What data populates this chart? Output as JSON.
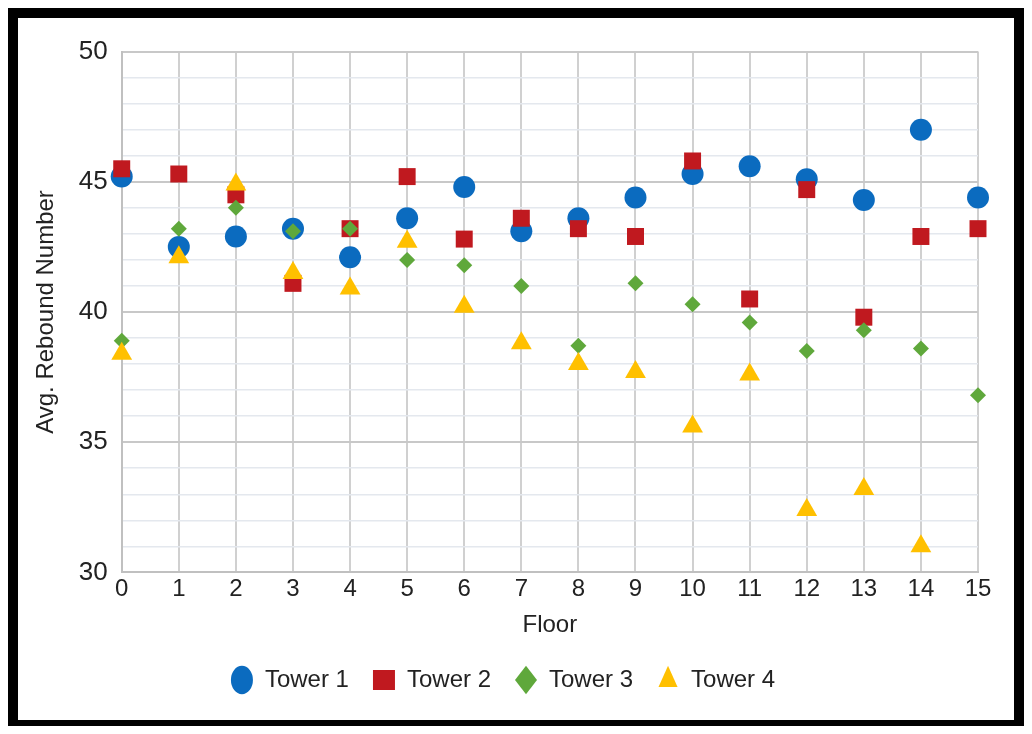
{
  "chart_data": {
    "type": "scatter",
    "xlabel": "Floor",
    "ylabel": "Avg. Rebound Number",
    "x": [
      0,
      1,
      2,
      3,
      4,
      5,
      6,
      7,
      8,
      9,
      10,
      11,
      12,
      13,
      14,
      15
    ],
    "xlim": [
      0,
      15
    ],
    "xticks": [
      0,
      1,
      2,
      3,
      4,
      5,
      6,
      7,
      8,
      9,
      10,
      11,
      12,
      13,
      14,
      15
    ],
    "ylim": [
      30,
      50
    ],
    "yticks": [
      30,
      {
        "value": 31,
        "label": null
      },
      {
        "value": 32,
        "label": null
      },
      {
        "value": 33,
        "label": null
      },
      {
        "value": 34,
        "label": null
      },
      35,
      {
        "value": 36,
        "label": null
      },
      {
        "value": 37,
        "label": null
      },
      {
        "value": 38,
        "label": null
      },
      {
        "value": 39,
        "label": null
      },
      40,
      {
        "value": 41,
        "label": null
      },
      {
        "value": 42,
        "label": null
      },
      {
        "value": 43,
        "label": null
      },
      {
        "value": 44,
        "label": null
      },
      45,
      {
        "value": 46,
        "label": null
      },
      {
        "value": 47,
        "label": null
      },
      {
        "value": 48,
        "label": null
      },
      {
        "value": 49,
        "label": null
      },
      50
    ],
    "grid": true,
    "legend": "bottom",
    "series": [
      {
        "name": "Tower 1",
        "color": "#0b6bbf",
        "marker": "circle",
        "values": [
          45.2,
          42.5,
          42.9,
          43.2,
          42.1,
          43.6,
          44.8,
          43.1,
          43.6,
          44.4,
          45.3,
          45.6,
          45.1,
          44.3,
          47.0,
          44.4
        ]
      },
      {
        "name": "Tower 2",
        "color": "#c0191f",
        "marker": "square",
        "values": [
          45.5,
          45.3,
          44.5,
          41.1,
          43.2,
          45.2,
          42.8,
          43.6,
          43.2,
          42.9,
          45.8,
          40.5,
          44.7,
          39.8,
          42.9,
          43.2
        ]
      },
      {
        "name": "Tower 3",
        "color": "#5fa83b",
        "marker": "diamond",
        "values": [
          38.9,
          43.2,
          44.0,
          43.1,
          43.2,
          42.0,
          41.8,
          41.0,
          38.7,
          41.1,
          40.3,
          39.6,
          38.5,
          39.3,
          38.6,
          36.8
        ]
      },
      {
        "name": "Tower 4",
        "color": "#ffc000",
        "marker": "triangle",
        "values": [
          38.4,
          42.1,
          44.9,
          41.5,
          40.9,
          42.7,
          40.2,
          38.8,
          38.0,
          37.7,
          35.6,
          37.6,
          32.4,
          33.2,
          31.0,
          null
        ]
      }
    ]
  }
}
